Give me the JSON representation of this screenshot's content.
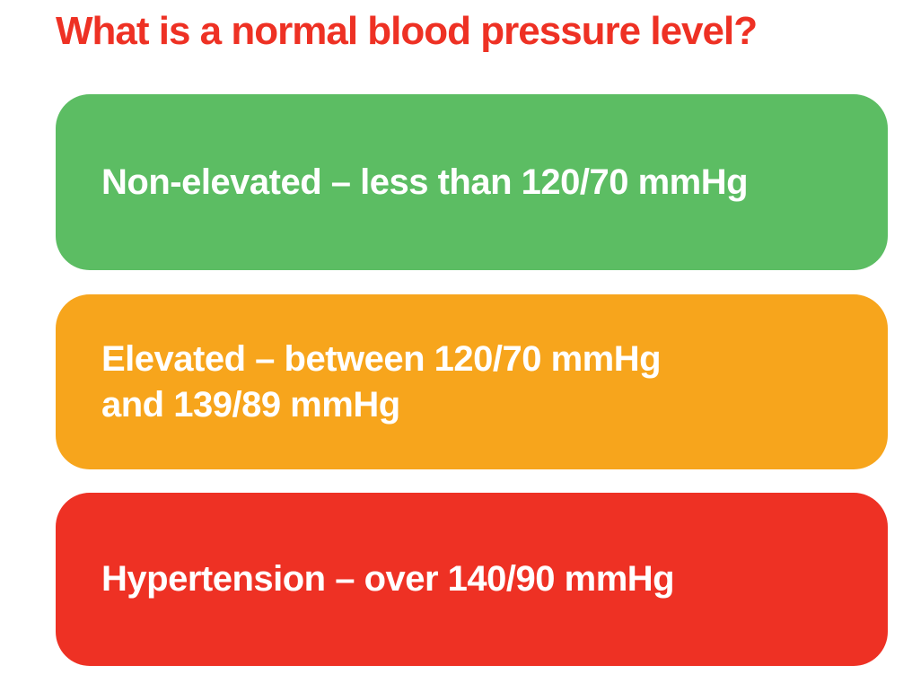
{
  "page": {
    "background_color": "#ffffff",
    "title": {
      "text": "What is a normal blood pressure level?",
      "color": "#ee3124"
    }
  },
  "cards": [
    {
      "name": "non-elevated",
      "color": "#5cbd63",
      "text_color": "#ffffff",
      "lines": [
        "Non-elevated – less than 120/70 mmHg"
      ]
    },
    {
      "name": "elevated",
      "color": "#f7a51c",
      "text_color": "#ffffff",
      "lines": [
        "Elevated – between 120/70 mmHg",
        "and 139/89 mmHg"
      ]
    },
    {
      "name": "hypertension",
      "color": "#ee3124",
      "text_color": "#ffffff",
      "lines": [
        "Hypertension – over 140/90 mmHg"
      ]
    }
  ]
}
